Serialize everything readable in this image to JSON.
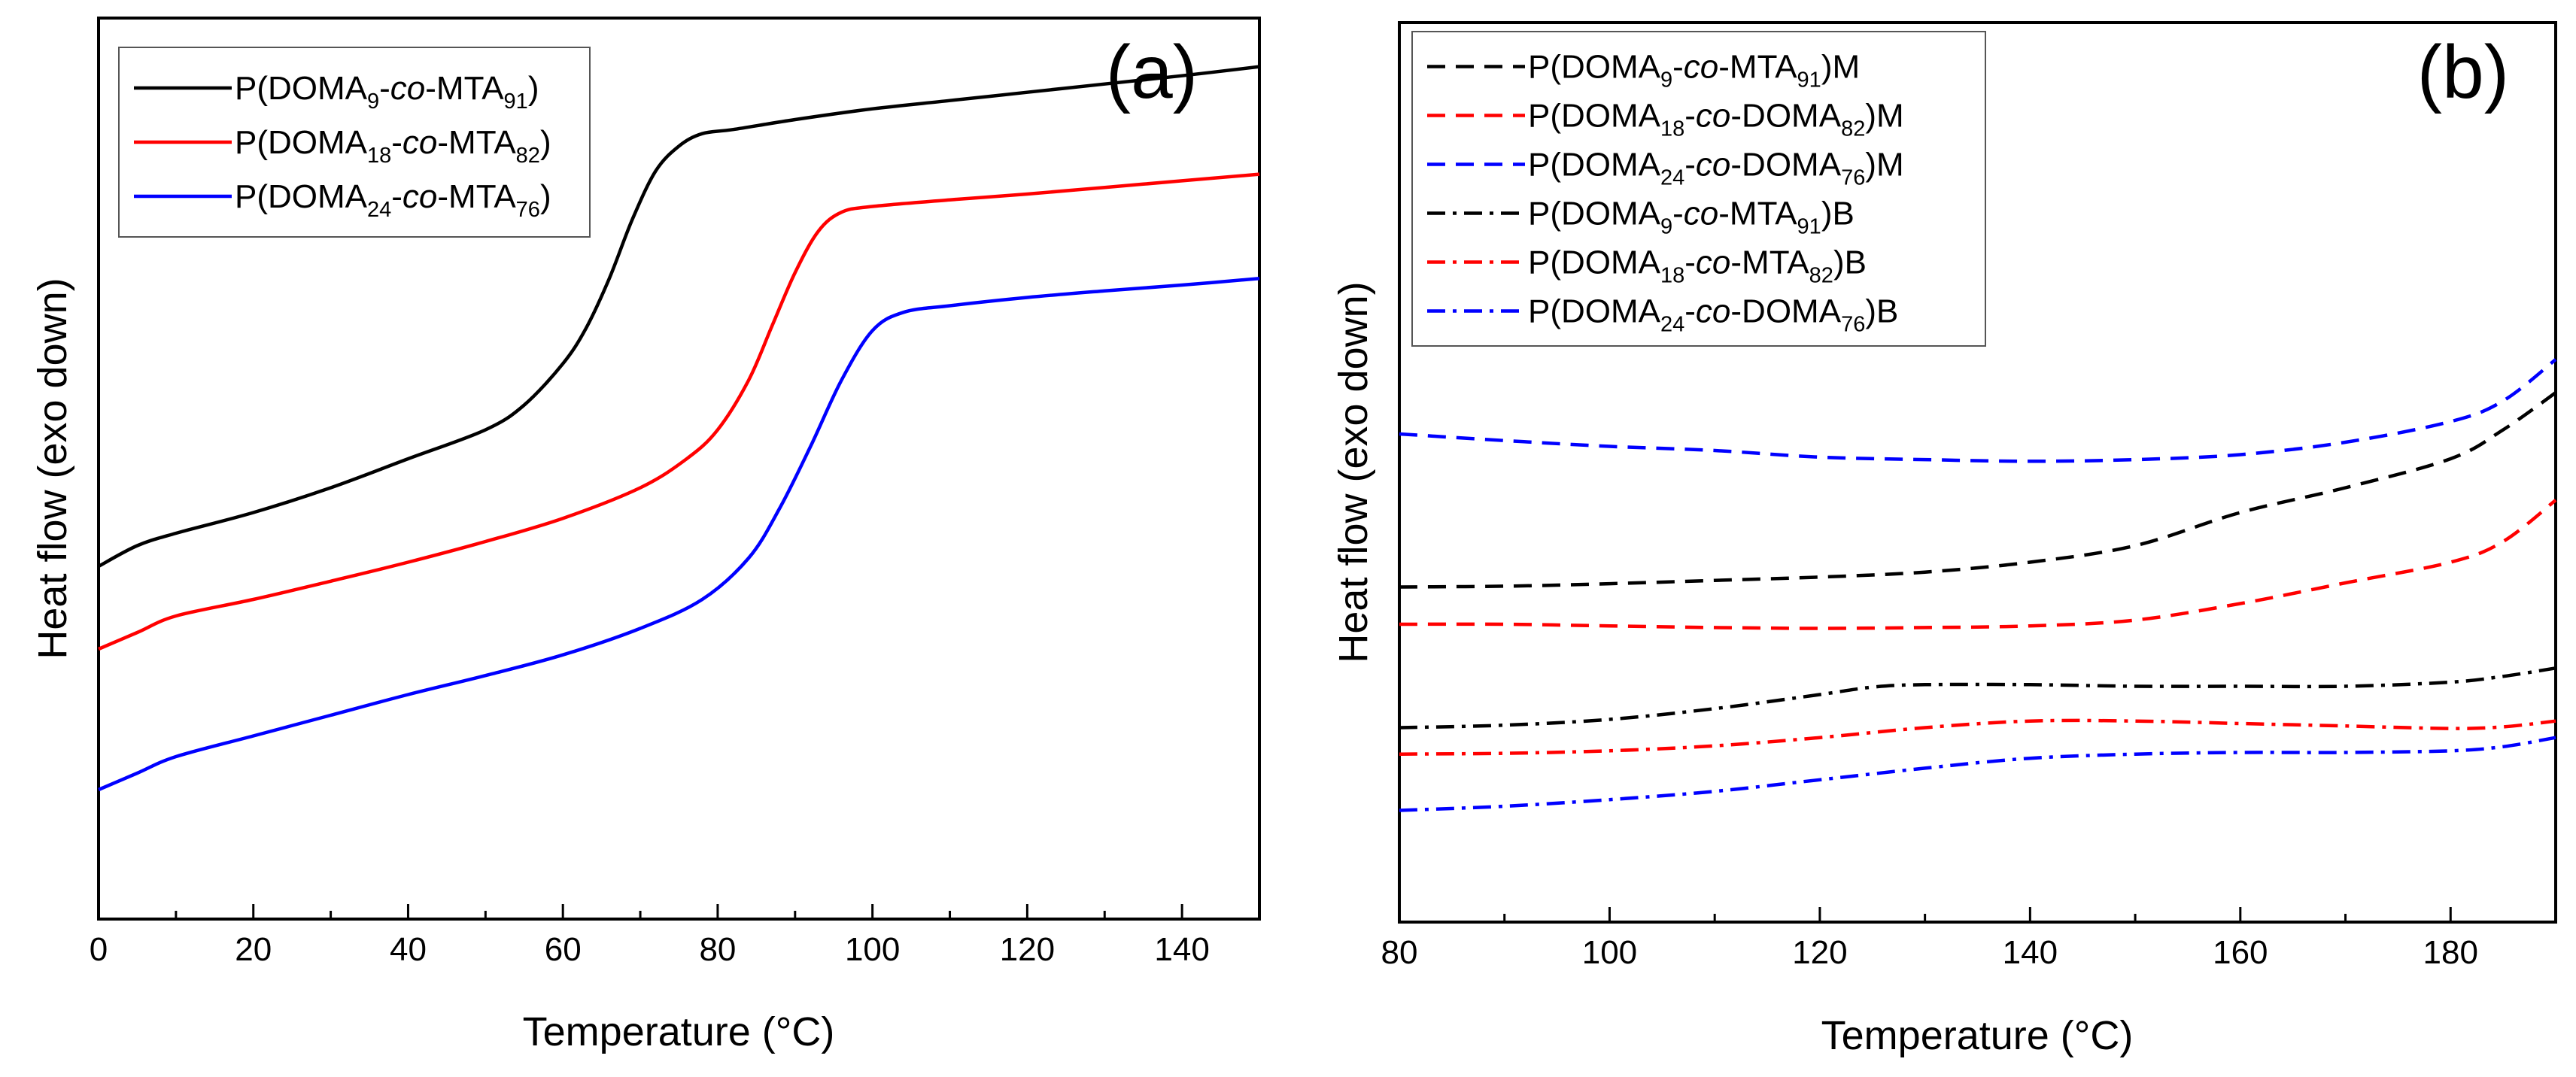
{
  "chart_data": [
    {
      "type": "line",
      "panel_label": "(a)",
      "xlabel": "Temperature (°C)",
      "ylabel": "Heat flow (exo down)",
      "xlim": [
        0,
        150
      ],
      "ylim": [
        0,
        100
      ],
      "x_ticks": [
        0,
        20,
        40,
        60,
        80,
        100,
        120,
        140
      ],
      "y_ticks_shown": false,
      "grid": false,
      "legend_position": "top-left",
      "series": [
        {
          "name": "P(DOMA9-co-MTA91)",
          "legend": {
            "main": "DOMA",
            "sub1": "9",
            "mid": "co",
            "right": "MTA",
            "sub2": "91",
            "suffix": ""
          },
          "color": "#000000",
          "dash": "solid",
          "x": [
            0,
            5,
            10,
            20,
            30,
            40,
            50,
            55,
            60,
            63,
            66,
            69,
            72,
            75,
            78,
            82,
            90,
            100,
            110,
            120,
            130,
            140,
            150
          ],
          "y": [
            37.0,
            39.5,
            41.0,
            43.5,
            46.5,
            50.0,
            53.5,
            56.5,
            61.5,
            65.8,
            71.8,
            79.0,
            84.8,
            87.8,
            89.3,
            89.8,
            91.0,
            92.3,
            93.3,
            94.3,
            95.3,
            96.3,
            97.4
          ]
        },
        {
          "name": "P(DOMA18-co-MTA82)",
          "legend": {
            "main": "DOMA",
            "sub1": "18",
            "mid": "co",
            "right": "MTA",
            "sub2": "82",
            "suffix": ""
          },
          "color": "#ff0000",
          "dash": "solid",
          "x": [
            0,
            5,
            10,
            20,
            30,
            40,
            50,
            60,
            70,
            76,
            80,
            84,
            87,
            90,
            93,
            96,
            100,
            110,
            120,
            130,
            140,
            150
          ],
          "y": [
            27.0,
            29.0,
            31.0,
            33.0,
            35.2,
            37.5,
            40.0,
            42.8,
            46.5,
            50.0,
            53.5,
            59.5,
            66.0,
            72.5,
            77.5,
            79.8,
            80.5,
            81.3,
            82.0,
            82.8,
            83.6,
            84.4
          ]
        },
        {
          "name": "P(DOMA24-co-MTA76)",
          "legend": {
            "main": "DOMA",
            "sub1": "24",
            "mid": "co",
            "right": "MTA",
            "sub2": "76",
            "suffix": ""
          },
          "color": "#0000ff",
          "dash": "solid",
          "x": [
            0,
            5,
            10,
            20,
            30,
            40,
            50,
            60,
            70,
            78,
            84,
            88,
            92,
            96,
            100,
            104,
            110,
            120,
            130,
            140,
            150
          ],
          "y": [
            10.0,
            12.0,
            14.0,
            16.5,
            19.0,
            21.5,
            23.8,
            26.3,
            29.5,
            33.0,
            38.0,
            44.0,
            51.5,
            59.5,
            65.5,
            67.7,
            68.5,
            69.5,
            70.3,
            71.0,
            71.8
          ]
        }
      ]
    },
    {
      "type": "line",
      "panel_label": "(b)",
      "xlabel": "Temperature (°C)",
      "ylabel": "Heat flow (exo down)",
      "xlim": [
        80,
        190
      ],
      "ylim": [
        0,
        100
      ],
      "x_ticks": [
        80,
        100,
        120,
        140,
        160,
        180
      ],
      "y_ticks_shown": false,
      "grid": false,
      "legend_position": "top-left",
      "series": [
        {
          "name": "P(DOMA9-co-MTA91)M",
          "legend": {
            "main": "DOMA",
            "sub1": "9",
            "mid": "co",
            "right": "MTA",
            "sub2": "91",
            "suffix": "M"
          },
          "color": "#000000",
          "dash": "dashed",
          "x": [
            80,
            90,
            100,
            110,
            120,
            130,
            140,
            150,
            160,
            170,
            180,
            185,
            190
          ],
          "y": [
            34.5,
            34.6,
            34.9,
            35.3,
            35.7,
            36.3,
            37.5,
            39.5,
            43.5,
            46.5,
            50.0,
            53.5,
            58.0
          ]
        },
        {
          "name": "P(DOMA18-co-DOMA82)M",
          "legend": {
            "main": "DOMA",
            "sub1": "18",
            "mid": "co",
            "right": "DOMA",
            "sub2": "82",
            "suffix": "M"
          },
          "color": "#ff0000",
          "dash": "dashed",
          "x": [
            80,
            90,
            100,
            110,
            120,
            130,
            140,
            150,
            160,
            170,
            180,
            185,
            190
          ],
          "y": [
            30.0,
            30.0,
            29.8,
            29.6,
            29.5,
            29.6,
            29.8,
            30.5,
            32.5,
            35.0,
            37.5,
            40.0,
            45.0
          ]
        },
        {
          "name": "P(DOMA24-co-DOMA76)M",
          "legend": {
            "main": "DOMA",
            "sub1": "24",
            "mid": "co",
            "right": "DOMA",
            "sub2": "76",
            "suffix": "M"
          },
          "color": "#0000ff",
          "dash": "dashed",
          "x": [
            80,
            90,
            100,
            110,
            120,
            130,
            140,
            150,
            160,
            170,
            180,
            185,
            190
          ],
          "y": [
            53.0,
            52.2,
            51.5,
            51.0,
            50.2,
            49.9,
            49.7,
            49.9,
            50.5,
            52.0,
            54.5,
            57.0,
            62.0
          ]
        },
        {
          "name": "P(DOMA9-co-MTA91)B",
          "legend": {
            "main": "DOMA",
            "sub1": "9",
            "mid": "co",
            "right": "MTA",
            "sub2": "91",
            "suffix": "B"
          },
          "color": "#000000",
          "dash": "dashdot",
          "x": [
            80,
            90,
            100,
            110,
            120,
            125,
            130,
            140,
            150,
            160,
            170,
            180,
            185,
            190
          ],
          "y": [
            17.5,
            17.8,
            18.5,
            19.8,
            21.5,
            22.4,
            22.7,
            22.7,
            22.5,
            22.5,
            22.5,
            23.0,
            23.7,
            24.7
          ]
        },
        {
          "name": "P(DOMA18-co-MTA82)B",
          "legend": {
            "main": "DOMA",
            "sub1": "18",
            "mid": "co",
            "right": "MTA",
            "sub2": "82",
            "suffix": "B"
          },
          "color": "#ff0000",
          "dash": "dashdot",
          "x": [
            80,
            90,
            100,
            110,
            120,
            130,
            140,
            150,
            160,
            170,
            180,
            185,
            190
          ],
          "y": [
            14.3,
            14.4,
            14.7,
            15.3,
            16.3,
            17.5,
            18.3,
            18.3,
            18.0,
            17.7,
            17.4,
            17.6,
            18.3
          ]
        },
        {
          "name": "P(DOMA24-co-DOMA76)B",
          "legend": {
            "main": "DOMA",
            "sub1": "24",
            "mid": "co",
            "right": "DOMA",
            "sub2": "76",
            "suffix": "B"
          },
          "color": "#0000ff",
          "dash": "dashdot",
          "x": [
            80,
            90,
            100,
            110,
            120,
            130,
            140,
            150,
            160,
            170,
            180,
            185,
            190
          ],
          "y": [
            7.5,
            8.0,
            8.8,
            9.8,
            11.2,
            12.6,
            13.8,
            14.3,
            14.5,
            14.5,
            14.7,
            15.2,
            16.3
          ]
        }
      ]
    }
  ]
}
